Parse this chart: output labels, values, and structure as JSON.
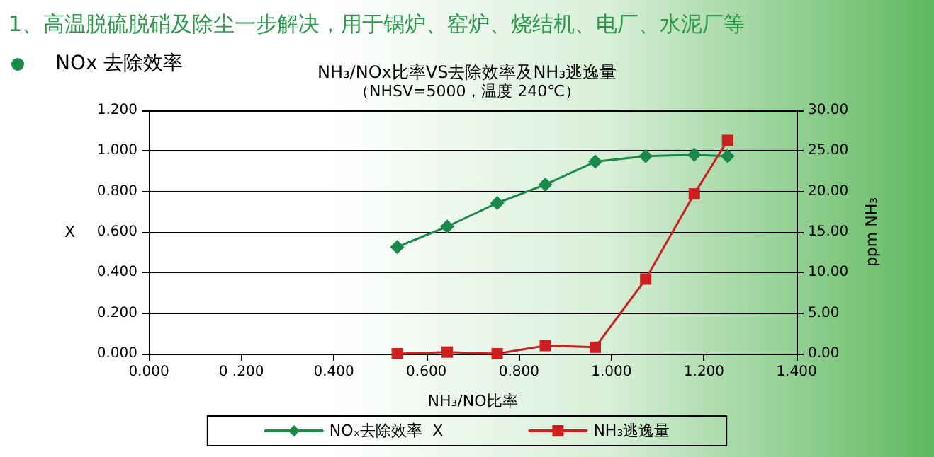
{
  "chart_data": {
    "type": "line",
    "title": "NH₃/NOx比率VS去除效率及NH₃逃逸量",
    "subtitle": "（NHSV=5000，温度 240℃）",
    "annotations": [
      "1、高温脱硫脱硝及除尘一步解决，用于锅炉、窑炉、烧结机、电厂、水泥厂等",
      "NOx 去除效率"
    ],
    "xlabel": "NH₃/NO比率",
    "ylabel": "X",
    "y2label": "ppm NH₃",
    "x": [
      0.537,
      0.645,
      0.753,
      0.857,
      0.965,
      1.074,
      1.179,
      1.251
    ],
    "series": [
      {
        "name": "NOₓ去除效率  X",
        "color": "#1a8a4a",
        "marker": "diamond",
        "values": [
          0.526,
          0.627,
          0.743,
          0.834,
          0.947,
          0.974,
          0.981,
          0.974
        ]
      },
      {
        "name": "NH₃逃逸量",
        "color": "#cc1f1f",
        "marker": "square",
        "axis": "y2",
        "values": [
          0,
          0.2,
          0,
          1.0,
          0.8,
          9.2,
          19.7,
          26.3
        ]
      }
    ],
    "xlim": [
      0,
      1.4
    ],
    "xticks": [
      {
        "value": 0,
        "label": "0.000"
      },
      {
        "value": 0.2,
        "label": "0 .200"
      },
      {
        "value": 0.4,
        "label": "0.400"
      },
      {
        "value": 0.6,
        "label": "0.600"
      },
      {
        "value": 0.8,
        "label": "0.800"
      },
      {
        "value": 1.0,
        "label": "1.000"
      },
      {
        "value": 1.2,
        "label": "1.200"
      },
      {
        "value": 1.4,
        "label": "1.400"
      }
    ],
    "ylim": [
      0,
      1.2
    ],
    "yticks": [
      {
        "value": 0,
        "label": "0.000"
      },
      {
        "value": 0.2,
        "label": "0.200"
      },
      {
        "value": 0.4,
        "label": "0.400"
      },
      {
        "value": 0.6,
        "label": "0.600"
      },
      {
        "value": 0.8,
        "label": "0.800"
      },
      {
        "value": 1.0,
        "label": "1.000"
      },
      {
        "value": 1.2,
        "label": "1.200"
      }
    ],
    "y2lim": [
      0,
      30
    ],
    "y2ticks": [
      {
        "value": 0,
        "label": "0.00"
      },
      {
        "value": 5,
        "label": "5.00"
      },
      {
        "value": 10,
        "label": "10.00"
      },
      {
        "value": 15,
        "label": "15.00"
      },
      {
        "value": 20,
        "label": "20.00"
      },
      {
        "value": 25,
        "label": "25.00"
      },
      {
        "value": 30,
        "label": "30.00"
      }
    ],
    "grid": "y",
    "legend": "bottom",
    "line_style": "solid"
  }
}
